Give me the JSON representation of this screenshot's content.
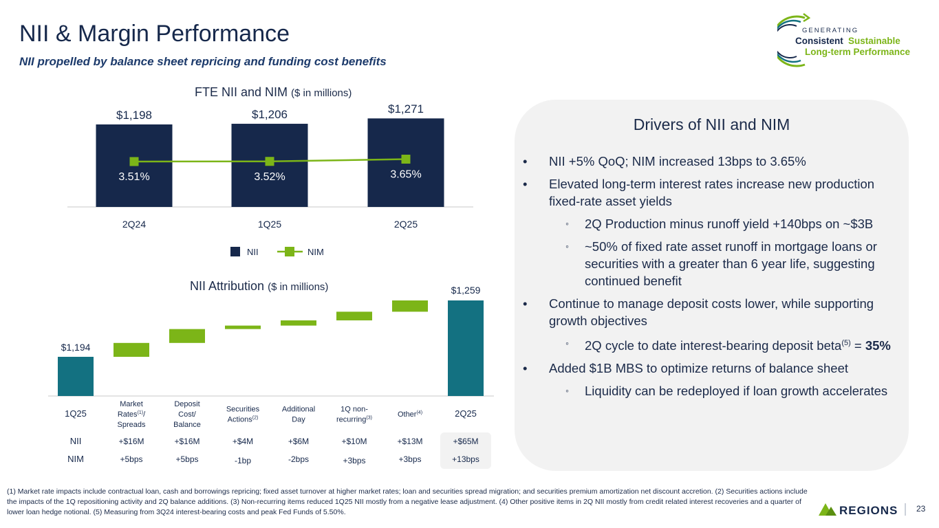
{
  "header": {
    "title": "NII & Margin Performance",
    "subtitle": "NII propelled by balance sheet repricing and funding cost benefits"
  },
  "logo": {
    "line1": "GENERATING",
    "line2a": "Consistent",
    "line2b": "Sustainable",
    "line3": "Long-term Performance"
  },
  "colors": {
    "navy": "#16284b",
    "green": "#7cb518",
    "teal": "#137181",
    "panel": "#f2f2f2"
  },
  "chart_data": [
    {
      "type": "bar",
      "title": "FTE NII and NIM",
      "title_note": "($ in millions)",
      "categories": [
        "2Q24",
        "1Q25",
        "2Q25"
      ],
      "series": [
        {
          "name": "NII",
          "values": [
            1198,
            1206,
            1271
          ],
          "labels": [
            "$1,198",
            "$1,206",
            "$1,271"
          ]
        },
        {
          "name": "NIM",
          "values": [
            3.51,
            3.52,
            3.65
          ],
          "labels": [
            "3.51%",
            "3.52%",
            "3.65%"
          ]
        }
      ],
      "legend": [
        "NII",
        "NIM"
      ]
    },
    {
      "type": "bar",
      "subtype": "waterfall",
      "title": "NII Attribution",
      "title_note": "($ in millions)",
      "start": {
        "label": "1Q25",
        "value": 1194,
        "value_label": "$1,194"
      },
      "end": {
        "label": "2Q25",
        "value": 1259,
        "value_label": "$1,259"
      },
      "steps": [
        {
          "label": "Market Rates(1)/ Spreads",
          "value": 16
        },
        {
          "label": "Deposit Cost/ Balance",
          "value": 16
        },
        {
          "label": "Securities Actions(2)",
          "value": 4
        },
        {
          "label": "Additional Day",
          "value": 6
        },
        {
          "label": "1Q non-recurring(3)",
          "value": 10
        },
        {
          "label": "Other(4)",
          "value": 13
        }
      ],
      "table": {
        "row_labels": [
          "NII",
          "NIM"
        ],
        "nii": [
          "+$16M",
          "+$16M",
          "+$4M",
          "+$6M",
          "+$10M",
          "+$13M",
          "+$65M"
        ],
        "nim": [
          "+5bps",
          "+5bps",
          "-1bp",
          "-2bps",
          "+3bps",
          "+3bps",
          "+13bps"
        ]
      }
    }
  ],
  "drivers": {
    "title": "Drivers of NII and NIM",
    "b1": "NII +5% QoQ; NIM increased 13bps to 3.65%",
    "b2": "Elevated long-term interest rates increase new production fixed-rate asset yields",
    "b2a": "2Q Production minus runoff yield  +140bps on ~$3B",
    "b2b": "~50% of fixed rate asset runoff in mortgage loans or securities with a greater than 6 year life, suggesting continued benefit",
    "b3": "Continue to manage deposit costs lower, while supporting growth objectives",
    "b3a_pre": "2Q cycle to date interest-bearing deposit beta",
    "b3a_sup": "(5)",
    "b3a_post": " = ",
    "b3a_bold": "35%",
    "b4": "Added $1B MBS to optimize returns of balance sheet",
    "b4a": "Liquidity can be redeployed if loan growth accelerates"
  },
  "footnote": "(1) Market rate impacts include contractual loan, cash and borrowings repricing; fixed asset turnover at higher market rates; loan and securities spread migration; and securities premium amortization net discount accretion.  (2) Securities actions include the impacts of the 1Q repositioning activity and 2Q balance additions.  (3) Non-recurring items reduced 1Q25 NII mostly from a negative lease adjustment.  (4) Other positive items in 2Q NII mostly from credit related interest recoveries and a quarter of lower loan hedge notional.  (5) Measuring from 3Q24 interest-bearing costs and peak Fed Funds of 5.50%.",
  "brand": {
    "name": "REGIONS",
    "page": "23"
  }
}
